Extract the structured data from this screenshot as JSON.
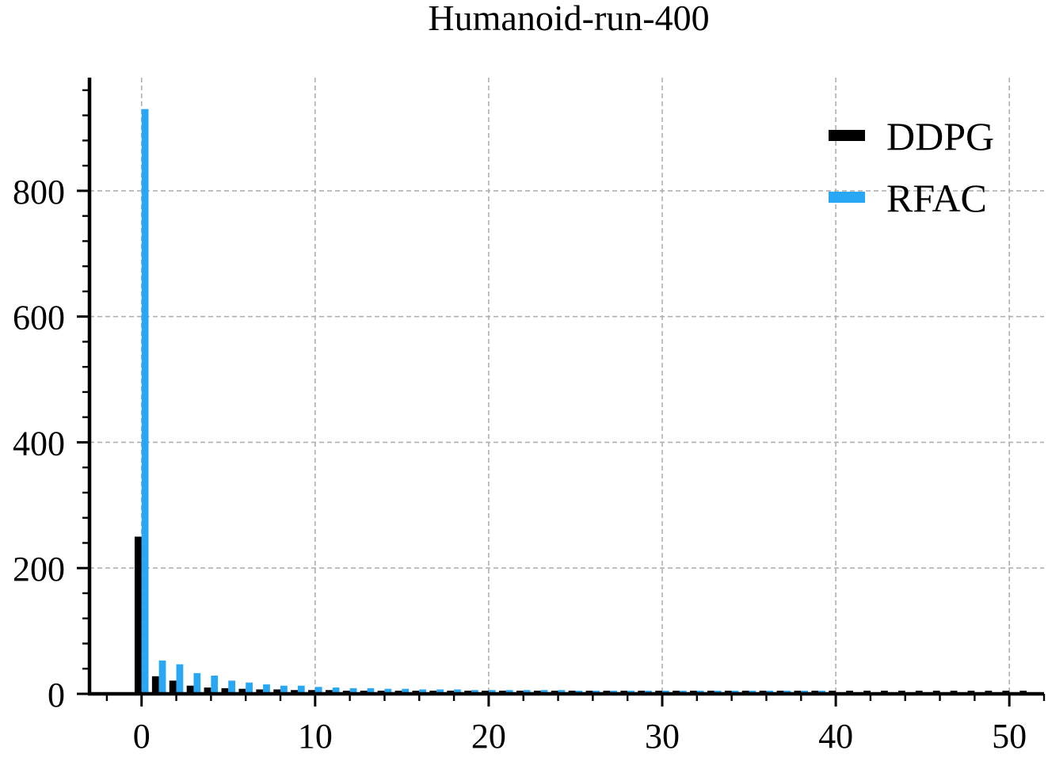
{
  "chart_data": {
    "type": "bar",
    "title": "Humanoid-run-400",
    "xlabel": "",
    "ylabel": "",
    "xlim": [
      -3,
      52
    ],
    "ylim": [
      0,
      980
    ],
    "xticks": [
      0,
      10,
      20,
      30,
      40,
      50
    ],
    "yticks": [
      0,
      200,
      400,
      600,
      800
    ],
    "xtick_labels": [
      "0",
      "10",
      "20",
      "30",
      "40",
      "50"
    ],
    "ytick_labels": [
      "0",
      "200",
      "400",
      "600",
      "800"
    ],
    "grid": true,
    "legend_position": "top-right",
    "bar_width": 0.4,
    "series": [
      {
        "name": "DDPG",
        "color": "#000000",
        "offset": -0.2,
        "x": [
          0,
          1,
          2,
          3,
          4,
          5,
          6,
          7,
          8,
          9,
          10,
          11,
          12,
          13,
          14,
          15,
          16,
          17,
          18,
          19,
          20,
          21,
          22,
          23,
          24,
          25,
          26,
          27,
          28,
          29,
          30,
          31,
          32,
          33,
          34,
          35,
          36,
          37,
          38,
          39,
          40,
          41,
          42,
          43,
          44,
          45,
          46,
          47,
          48,
          49,
          50,
          51
        ],
        "values": [
          250,
          28,
          21,
          13,
          10,
          9,
          8,
          7,
          7,
          6,
          6,
          6,
          5,
          5,
          5,
          5,
          5,
          5,
          5,
          5,
          5,
          5,
          5,
          5,
          5,
          5,
          5,
          5,
          5,
          5,
          5,
          5,
          5,
          5,
          5,
          5,
          5,
          5,
          5,
          5,
          5,
          5,
          5,
          5,
          5,
          5,
          5,
          5,
          5,
          5,
          5,
          5
        ]
      },
      {
        "name": "RFAC",
        "color": "#27a7f4",
        "offset": 0.2,
        "x": [
          0,
          1,
          2,
          3,
          4,
          5,
          6,
          7,
          8,
          9,
          10,
          11,
          12,
          13,
          14,
          15,
          16,
          17,
          18,
          19,
          20,
          21,
          22,
          23,
          24,
          25,
          26,
          27,
          28,
          29,
          30,
          31,
          32,
          33,
          34,
          35,
          36,
          37,
          38,
          39
        ],
        "values": [
          930,
          53,
          47,
          33,
          29,
          21,
          18,
          15,
          13,
          13,
          11,
          10,
          9,
          9,
          8,
          8,
          7,
          7,
          7,
          6,
          6,
          6,
          6,
          6,
          6,
          5,
          5,
          5,
          5,
          5,
          5,
          5,
          5,
          5,
          5,
          5,
          5,
          5,
          5,
          5
        ]
      }
    ]
  }
}
